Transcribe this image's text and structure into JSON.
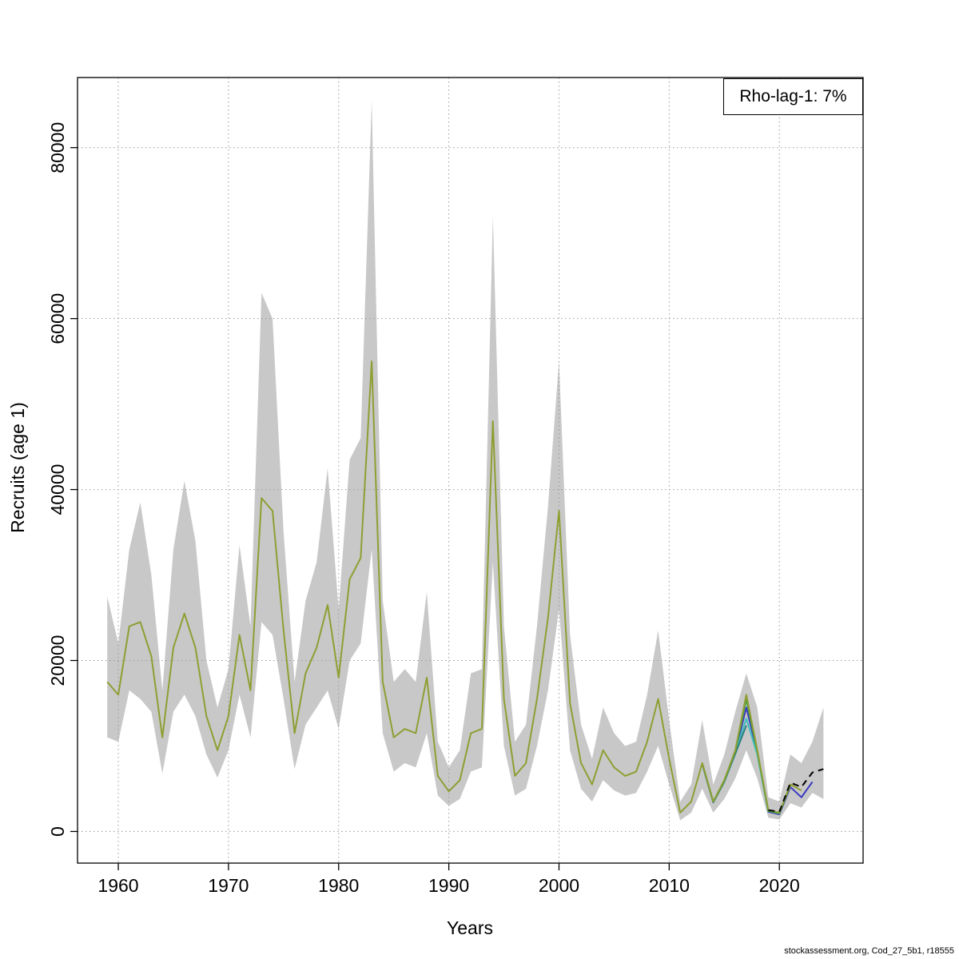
{
  "chart_data": {
    "type": "line",
    "title": "",
    "xlabel": "Years",
    "ylabel": "Recruits (age 1)",
    "legend_label": "Rho-lag-1: 7%",
    "footer": "stockassessment.org, Cod_27_5b1, r18555",
    "grid": true,
    "x_ticks": [
      1960,
      1970,
      1980,
      1990,
      2000,
      2010,
      2020
    ],
    "y_ticks": [
      0,
      20000,
      40000,
      60000,
      80000
    ],
    "x_range": [
      1956.3,
      2027.6
    ],
    "y_range": [
      -3700,
      88200
    ],
    "grid_color": "#9a9a9a",
    "years": [
      1959,
      1960,
      1961,
      1962,
      1963,
      1964,
      1965,
      1966,
      1967,
      1968,
      1969,
      1970,
      1971,
      1972,
      1973,
      1974,
      1975,
      1976,
      1977,
      1978,
      1979,
      1980,
      1981,
      1982,
      1983,
      1984,
      1985,
      1986,
      1987,
      1988,
      1989,
      1990,
      1991,
      1992,
      1993,
      1994,
      1995,
      1996,
      1997,
      1998,
      1999,
      2000,
      2001,
      2002,
      2003,
      2004,
      2005,
      2006,
      2007,
      2008,
      2009,
      2010,
      2011,
      2012,
      2013,
      2014,
      2015,
      2016,
      2017,
      2018,
      2019,
      2020,
      2021,
      2022,
      2023,
      2024
    ],
    "band": {
      "color": "#c8c8c8",
      "lower": [
        11000,
        10500,
        16500,
        15500,
        14000,
        6800,
        14000,
        16000,
        13500,
        9000,
        6300,
        9500,
        16000,
        11000,
        24500,
        23000,
        15500,
        7300,
        12500,
        14500,
        16500,
        12000,
        20000,
        22000,
        33000,
        11500,
        7000,
        8000,
        7500,
        11500,
        4200,
        3000,
        3800,
        7000,
        7500,
        31500,
        10000,
        4200,
        5000,
        10000,
        16500,
        26000,
        9500,
        5000,
        3500,
        6000,
        4800,
        4200,
        4500,
        7000,
        10000,
        5500,
        1300,
        2200,
        5000,
        2200,
        3800,
        6200,
        9500,
        6200,
        1600,
        1400,
        3300,
        2800,
        4500,
        3800
      ],
      "upper": [
        27500,
        22000,
        33000,
        38500,
        30000,
        16500,
        33000,
        41000,
        34000,
        20000,
        14500,
        19000,
        33500,
        24000,
        63000,
        60000,
        35000,
        17500,
        27000,
        31500,
        42500,
        26000,
        43500,
        46000,
        85500,
        27000,
        17500,
        19000,
        17500,
        28000,
        10500,
        7500,
        9500,
        18500,
        19000,
        72000,
        24000,
        10500,
        12500,
        24000,
        38000,
        55000,
        23000,
        12500,
        8500,
        14500,
        11500,
        10000,
        10500,
        16000,
        23500,
        13000,
        3500,
        5500,
        13000,
        5500,
        9000,
        14000,
        18500,
        14500,
        4000,
        3500,
        9000,
        8000,
        10500,
        14500
      ]
    },
    "series": [
      {
        "name": "retro-blue",
        "color": "#3b3bbf",
        "dashed": false,
        "start_year": 2013,
        "values": [
          7900,
          3450,
          5850,
          9300,
          14500,
          9200,
          2300,
          2000,
          5200,
          4000,
          5800
        ]
      },
      {
        "name": "retro-cyan",
        "color": "#3fbfbf",
        "dashed": false,
        "start_year": 2013,
        "values": [
          7900,
          3400,
          5800,
          9200,
          13200,
          9000,
          2300
        ]
      },
      {
        "name": "retro-teal",
        "color": "#2d7d7d",
        "dashed": false,
        "start_year": 2013,
        "values": [
          7900,
          3400,
          5800,
          9100,
          12400
        ]
      },
      {
        "name": "retro-green",
        "color": "#3fa03f",
        "dashed": false,
        "start_year": 2013,
        "values": [
          8000,
          3500,
          5900,
          9400,
          15500,
          9300,
          2400,
          2100,
          5400
        ]
      },
      {
        "name": "final-run",
        "color": "#8f9e33",
        "dashed": false,
        "start_year": 1959,
        "values": [
          17500,
          16000,
          24000,
          24500,
          20500,
          11000,
          21500,
          25500,
          21500,
          13500,
          9500,
          13500,
          23000,
          16500,
          39000,
          37500,
          23500,
          11500,
          18500,
          21500,
          26500,
          18000,
          29500,
          32000,
          55000,
          17500,
          11000,
          12000,
          11500,
          18000,
          6500,
          4700,
          6000,
          11500,
          12000,
          48000,
          15500,
          6500,
          8000,
          15500,
          25000,
          37500,
          15000,
          8000,
          5500,
          9500,
          7500,
          6500,
          7000,
          10500,
          15500,
          8500,
          2200,
          3500,
          8000,
          3500,
          6000,
          9500,
          16000,
          9500,
          2500,
          2200,
          5500,
          4800
        ]
      },
      {
        "name": "forecast",
        "color": "#000000",
        "dashed": true,
        "start_year": 2019,
        "values": [
          2500,
          2300,
          5700,
          5200,
          6900,
          7300
        ]
      }
    ]
  }
}
